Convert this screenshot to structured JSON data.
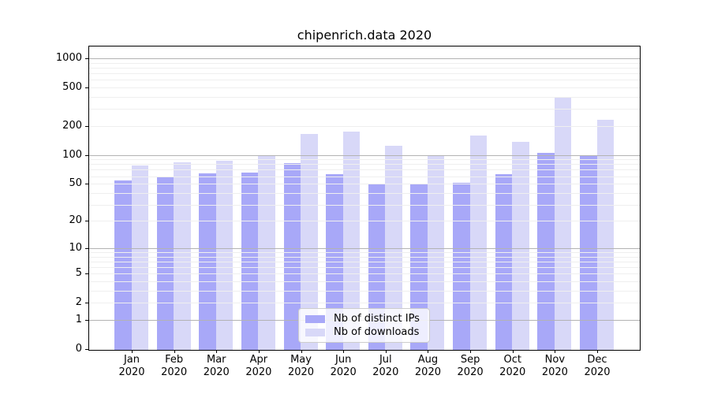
{
  "title": "chipenrich.data 2020",
  "chart_data": {
    "type": "bar",
    "title": "chipenrich.data 2020",
    "categories": [
      "Jan 2020",
      "Feb 2020",
      "Mar 2020",
      "Apr 2020",
      "May 2020",
      "Jun 2020",
      "Jul 2020",
      "Aug 2020",
      "Sep 2020",
      "Oct 2020",
      "Nov 2020",
      "Dec 2020"
    ],
    "series": [
      {
        "name": "Nb of distinct IPs",
        "color": "#a8a8f8",
        "values": [
          55,
          60,
          65,
          67,
          84,
          64,
          50,
          50,
          52,
          64,
          108,
          100
        ]
      },
      {
        "name": "Nb of downloads",
        "color": "#d8d8f8",
        "values": [
          79,
          85,
          88,
          100,
          168,
          178,
          128,
          100,
          162,
          139,
          405,
          235
        ]
      }
    ],
    "yscale": "symlog",
    "ylim": [
      0,
      1330
    ],
    "yticks": [
      0,
      1,
      2,
      5,
      10,
      20,
      50,
      100,
      200,
      500,
      1000
    ],
    "minor_gridlines": [
      2,
      3,
      4,
      5,
      6,
      7,
      8,
      9,
      20,
      30,
      40,
      50,
      60,
      70,
      80,
      90,
      200,
      300,
      400,
      500,
      600,
      700,
      800,
      900
    ],
    "major_gridlines": [
      1,
      10,
      100,
      1000
    ],
    "grid": "minor+major, drawn above bars",
    "legend_position": "lower center"
  },
  "colors": {
    "background": "#ffffff",
    "spine": "#000000",
    "major_grid": "#b3b3b3",
    "minor_grid": "#efefef",
    "bar_ips": "#a8a8f8",
    "bar_downloads": "#d8d8f8",
    "legend_border": "#cccccc",
    "text": "#000000"
  }
}
